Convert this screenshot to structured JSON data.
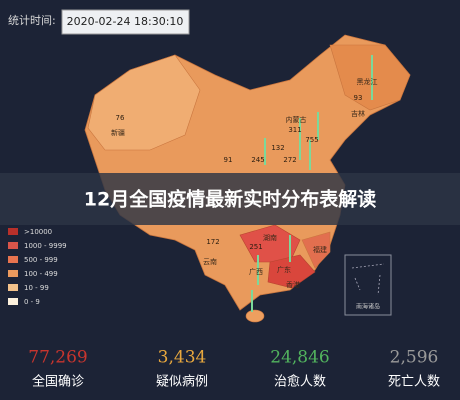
{
  "header": {
    "time_label": "统计时间:",
    "datetime": "2020-02-24 18:30:10"
  },
  "title": "12月全国疫情最新实时分布表解读",
  "legend": [
    ">10000",
    "1000 - 9999",
    "500 - 999",
    "100 - 499",
    "10 - 99",
    "0 - 9"
  ],
  "map": {
    "regions": [
      "新疆",
      "黑龙江",
      "吉林",
      "内蒙古",
      "云南",
      "广西",
      "广东",
      "湖南",
      "福建",
      "香港"
    ],
    "counts": [
      "76",
      "93",
      "311",
      "755",
      "132",
      "91",
      "245",
      "272",
      "172",
      "251"
    ],
    "inset": "南海诸岛"
  },
  "stats": [
    {
      "value": "77,269",
      "label": "全国确诊"
    },
    {
      "value": "3,434",
      "label": "疑似病例"
    },
    {
      "value": "24,846",
      "label": "治愈人数"
    },
    {
      "value": "2,596",
      "label": "死亡人数"
    }
  ]
}
